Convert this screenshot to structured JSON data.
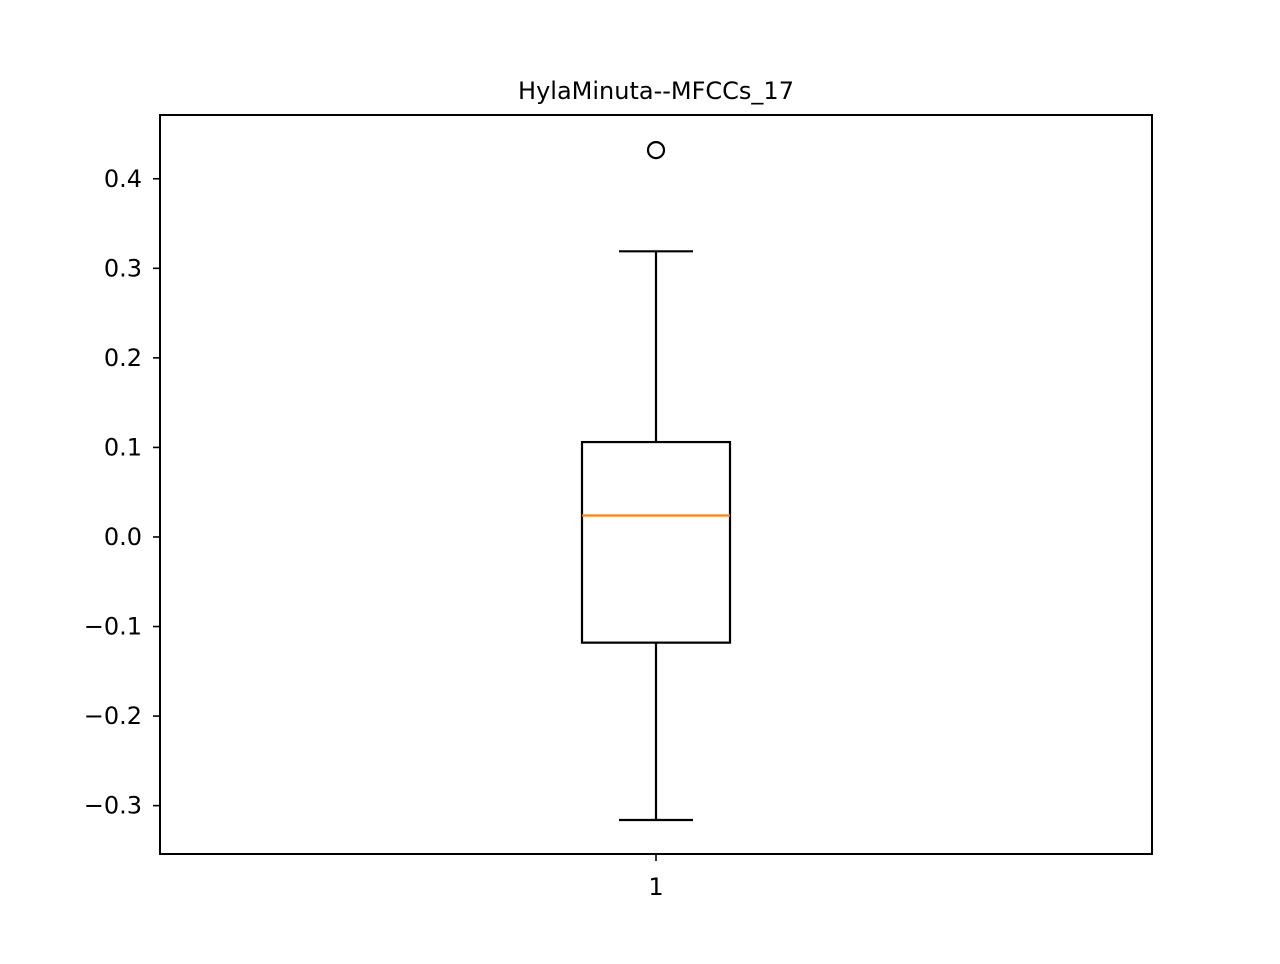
{
  "chart_data": {
    "type": "box",
    "title": "HylaMinuta--MFCCs_17",
    "xlabel": "",
    "ylabel": "",
    "categories": [
      "1"
    ],
    "ylim": [
      -0.354,
      0.4712
    ],
    "yticks": [
      -0.3,
      -0.2,
      -0.1,
      0.0,
      0.1,
      0.2,
      0.3,
      0.4
    ],
    "ytick_labels": [
      "−0.3",
      "−0.2",
      "−0.1",
      "0.0",
      "0.1",
      "0.2",
      "0.3",
      "0.4"
    ],
    "boxes": [
      {
        "label": "1",
        "whisker_low": -0.316,
        "q1": -0.118,
        "median": 0.024,
        "q3": 0.106,
        "whisker_high": 0.319,
        "outliers": [
          0.432
        ]
      }
    ],
    "grid": false,
    "legend": "none"
  },
  "colors": {
    "box": "#000000",
    "median": "#ff7f0e",
    "axes": "#000000",
    "background": "#ffffff"
  }
}
